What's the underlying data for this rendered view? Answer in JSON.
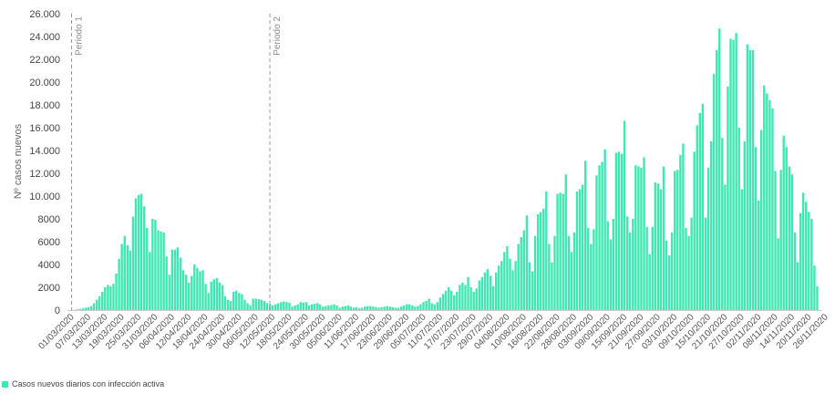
{
  "chart_data": {
    "type": "bar",
    "ylabel": "Nº casos nuevos",
    "ylim": [
      0,
      26000
    ],
    "yticks": [
      0,
      2000,
      4000,
      6000,
      8000,
      10000,
      12000,
      14000,
      16000,
      18000,
      20000,
      22000,
      24000,
      26000
    ],
    "ytick_labels": [
      "0",
      "2000",
      "4000",
      "6000",
      "8000",
      "10.000",
      "12.000",
      "14.000",
      "16.000",
      "18.000",
      "20.000",
      "22.000",
      "24.000",
      "26.000"
    ],
    "x_start": "01/03/2020",
    "x_end": "30/11/2020",
    "x_tick_labels": [
      "01/03/2020",
      "07/03/2020",
      "13/03/2020",
      "19/03/2020",
      "25/03/2020",
      "31/03/2020",
      "06/04/2020",
      "12/04/2020",
      "18/04/2020",
      "24/04/2020",
      "30/04/2020",
      "06/05/2020",
      "12/05/2020",
      "18/05/2020",
      "24/05/2020",
      "30/05/2020",
      "05/06/2020",
      "11/06/2020",
      "17/06/2020",
      "23/06/2020",
      "29/06/2020",
      "05/07/2020",
      "11/07/2020",
      "17/07/2020",
      "23/07/2020",
      "29/07/2020",
      "04/08/2020",
      "10/08/2020",
      "16/08/2020",
      "22/08/2020",
      "28/08/2020",
      "03/09/2020",
      "09/09/2020",
      "15/09/2020",
      "21/09/2020",
      "27/09/2020",
      "03/10/2020",
      "09/10/2020",
      "15/10/2020",
      "21/10/2020",
      "27/10/2020",
      "02/11/2020",
      "08/11/2020",
      "14/11/2020",
      "20/11/2020",
      "26/11/2020"
    ],
    "periods": [
      {
        "label": "Periodo 1",
        "date": "01/03/2020"
      },
      {
        "label": "Periodo 2",
        "date": "11/05/2020"
      }
    ],
    "series": [
      {
        "name": "Casos nuevos diarios con infección activa",
        "color": "#3ee8b0",
        "values": [
          10,
          20,
          60,
          90,
          150,
          200,
          260,
          350,
          600,
          900,
          1200,
          1600,
          2000,
          2200,
          2100,
          2300,
          3200,
          4500,
          5800,
          6500,
          5700,
          5200,
          8200,
          9800,
          10100,
          10200,
          9100,
          7200,
          5100,
          8000,
          7900,
          7000,
          6900,
          6800,
          4700,
          3100,
          5300,
          5300,
          5500,
          4600,
          3500,
          3100,
          2400,
          3000,
          4000,
          3700,
          3400,
          3500,
          2300,
          1500,
          2500,
          2700,
          2800,
          2400,
          2200,
          1200,
          900,
          800,
          1600,
          1700,
          1500,
          1400,
          900,
          600,
          400,
          1000,
          1000,
          950,
          900,
          800,
          600,
          500,
          400,
          500,
          600,
          700,
          750,
          700,
          650,
          300,
          400,
          500,
          700,
          650,
          700,
          400,
          500,
          550,
          600,
          500,
          300,
          350,
          400,
          450,
          500,
          400,
          200,
          300,
          350,
          400,
          300,
          200,
          250,
          150,
          200,
          300,
          350,
          350,
          300,
          250,
          200,
          250,
          300,
          350,
          300,
          250,
          200,
          200,
          300,
          400,
          500,
          500,
          400,
          300,
          350,
          500,
          700,
          800,
          1000,
          600,
          500,
          700,
          1100,
          1400,
          1700,
          2000,
          1700,
          1300,
          1600,
          2200,
          2400,
          2200,
          2900,
          2000,
          1600,
          1900,
          2600,
          2900,
          3300,
          3600,
          3000,
          2100,
          3300,
          3900,
          4300,
          5100,
          5600,
          4500,
          3500,
          4300,
          5800,
          6400,
          7000,
          8300,
          4200,
          3400,
          6500,
          8400,
          8600,
          8900,
          10400,
          5800,
          4200,
          6500,
          10200,
          10300,
          10200,
          11900,
          6500,
          5100,
          6800,
          10400,
          10600,
          11000,
          13100,
          7200,
          5800,
          7100,
          11800,
          12700,
          13000,
          14100,
          7800,
          6200,
          8000,
          13800,
          13900,
          13700,
          16600,
          8200,
          6800,
          8000,
          12700,
          12600,
          12500,
          13400,
          7300,
          4900,
          7300,
          11200,
          11100,
          10600,
          12600,
          6100,
          4800,
          6800,
          12200,
          12300,
          13600,
          14600,
          7200,
          6500,
          8100,
          13900,
          16200,
          17300,
          18100,
          8100,
          12500,
          14800,
          20700,
          22800,
          24700,
          15100,
          11000,
          19600,
          23800,
          23700,
          24300,
          16000,
          10600,
          14800,
          23300,
          22800,
          22800,
          14300,
          9600,
          15800,
          19700,
          19000,
          18400,
          17700,
          12200,
          6300,
          12300,
          15300,
          14300,
          12600,
          11900,
          6800,
          4200,
          8500,
          10300,
          9500,
          8600,
          8000,
          3900,
          2100
        ]
      }
    ],
    "grid": false,
    "legend_position": "bottom-left"
  }
}
